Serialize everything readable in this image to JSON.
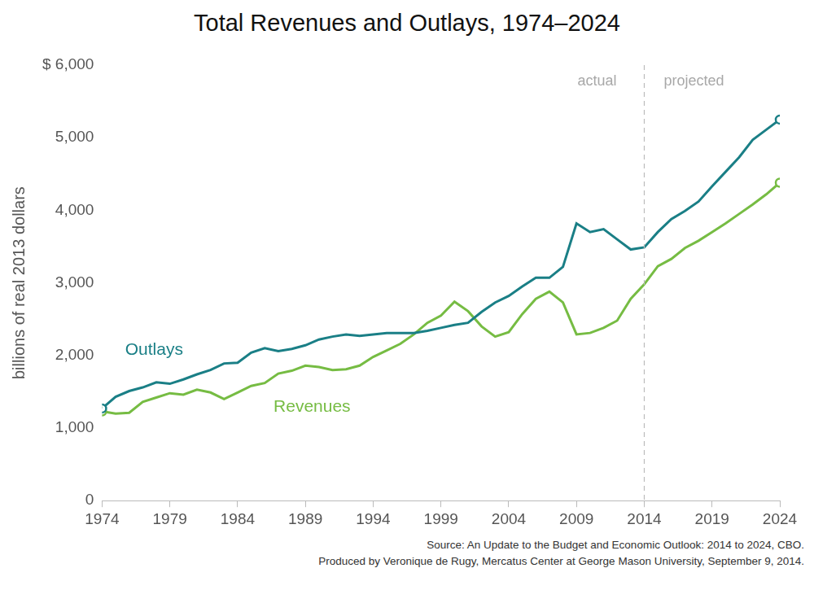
{
  "chart_data": {
    "type": "line",
    "title": "Total Revenues and Outlays, 1974–2024",
    "y_label": "billions of real 2013 dollars",
    "x": [
      1974,
      1975,
      1976,
      1977,
      1978,
      1979,
      1980,
      1981,
      1982,
      1983,
      1984,
      1985,
      1986,
      1987,
      1988,
      1989,
      1990,
      1991,
      1992,
      1993,
      1994,
      1995,
      1996,
      1997,
      1998,
      1999,
      2000,
      2001,
      2002,
      2003,
      2004,
      2005,
      2006,
      2007,
      2008,
      2009,
      2010,
      2011,
      2012,
      2013,
      2014,
      2015,
      2016,
      2017,
      2018,
      2019,
      2020,
      2021,
      2022,
      2023,
      2024
    ],
    "series": [
      {
        "name": "Outlays",
        "color": "#1a7f86",
        "marker": "circle",
        "values": [
          1270,
          1430,
          1510,
          1560,
          1630,
          1610,
          1670,
          1740,
          1800,
          1890,
          1900,
          2040,
          2100,
          2060,
          2090,
          2140,
          2220,
          2260,
          2290,
          2270,
          2290,
          2310,
          2310,
          2310,
          2340,
          2380,
          2420,
          2450,
          2600,
          2730,
          2820,
          2950,
          3070,
          3070,
          3220,
          3820,
          3700,
          3740,
          3600,
          3460,
          3490,
          3700,
          3880,
          3990,
          4120,
          4330,
          4530,
          4730,
          4970,
          5110,
          5250
        ]
      },
      {
        "name": "Revenues",
        "color": "#76bc43",
        "marker": "circle",
        "values": [
          1230,
          1200,
          1210,
          1360,
          1420,
          1480,
          1460,
          1530,
          1490,
          1400,
          1490,
          1580,
          1620,
          1750,
          1790,
          1860,
          1840,
          1800,
          1810,
          1860,
          1980,
          2070,
          2160,
          2290,
          2450,
          2550,
          2740,
          2610,
          2400,
          2260,
          2320,
          2570,
          2780,
          2880,
          2730,
          2290,
          2310,
          2380,
          2480,
          2780,
          2980,
          3230,
          3330,
          3480,
          3580,
          3700,
          3820,
          3950,
          4080,
          4220,
          4380
        ]
      }
    ],
    "xlim": [
      1974,
      2024
    ],
    "xticks": [
      1974,
      1979,
      1984,
      1989,
      1994,
      1999,
      2004,
      2009,
      2014,
      2019,
      2024
    ],
    "ylim": [
      0,
      6000
    ],
    "yticks": [
      0,
      {
        "value": 1000,
        "label": "1,000"
      },
      {
        "value": 2000,
        "label": "2,000"
      },
      {
        "value": 3000,
        "label": "3,000"
      },
      {
        "value": 4000,
        "label": "4,000"
      },
      {
        "value": 5000,
        "label": "5,000"
      },
      {
        "value": 6000,
        "label": "$ 6,000"
      }
    ],
    "grid": false,
    "reference_line": {
      "x": 2014,
      "line_style": "dashed",
      "labels": [
        "actual",
        "projected"
      ]
    },
    "notes": [
      "Source: An Update to the Budget and Economic Outlook: 2014 to 2024, CBO.",
      "Produced by Veronique de Rugy, Mercatus Center at George Mason University, September 9, 2014."
    ]
  }
}
